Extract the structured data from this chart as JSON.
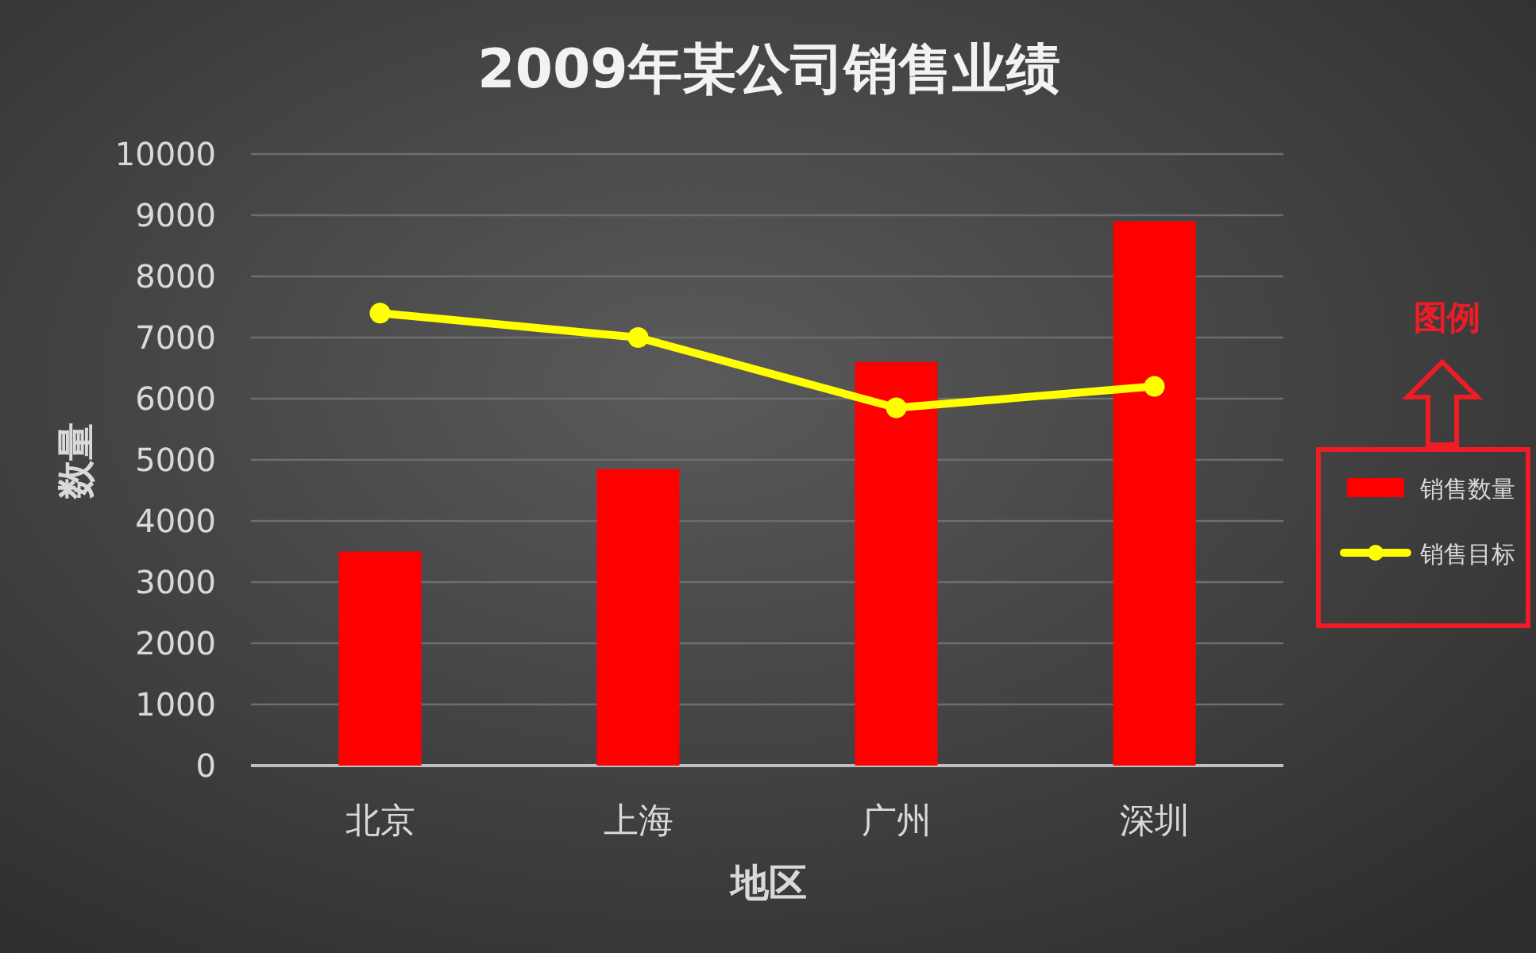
{
  "chart_data": {
    "type": "bar",
    "title": "2009年某公司销售业绩",
    "xlabel": "地区",
    "ylabel": "数量",
    "categories": [
      "北京",
      "上海",
      "广州",
      "深圳"
    ],
    "series": [
      {
        "name": "销售数量",
        "color": "#ff0000",
        "values": [
          3500,
          4850,
          6600,
          8900
        ]
      },
      {
        "name": "销售目标",
        "type": "line",
        "color": "#ffff00",
        "marker": "circle",
        "values": [
          7400,
          7000,
          5850,
          6200
        ]
      }
    ],
    "ylim": [
      0,
      10000
    ],
    "yticks": [
      0,
      1000,
      2000,
      3000,
      4000,
      5000,
      6000,
      7000,
      8000,
      9000,
      10000
    ],
    "grid": "y",
    "legend": "right",
    "annotations": [
      "图例"
    ]
  }
}
